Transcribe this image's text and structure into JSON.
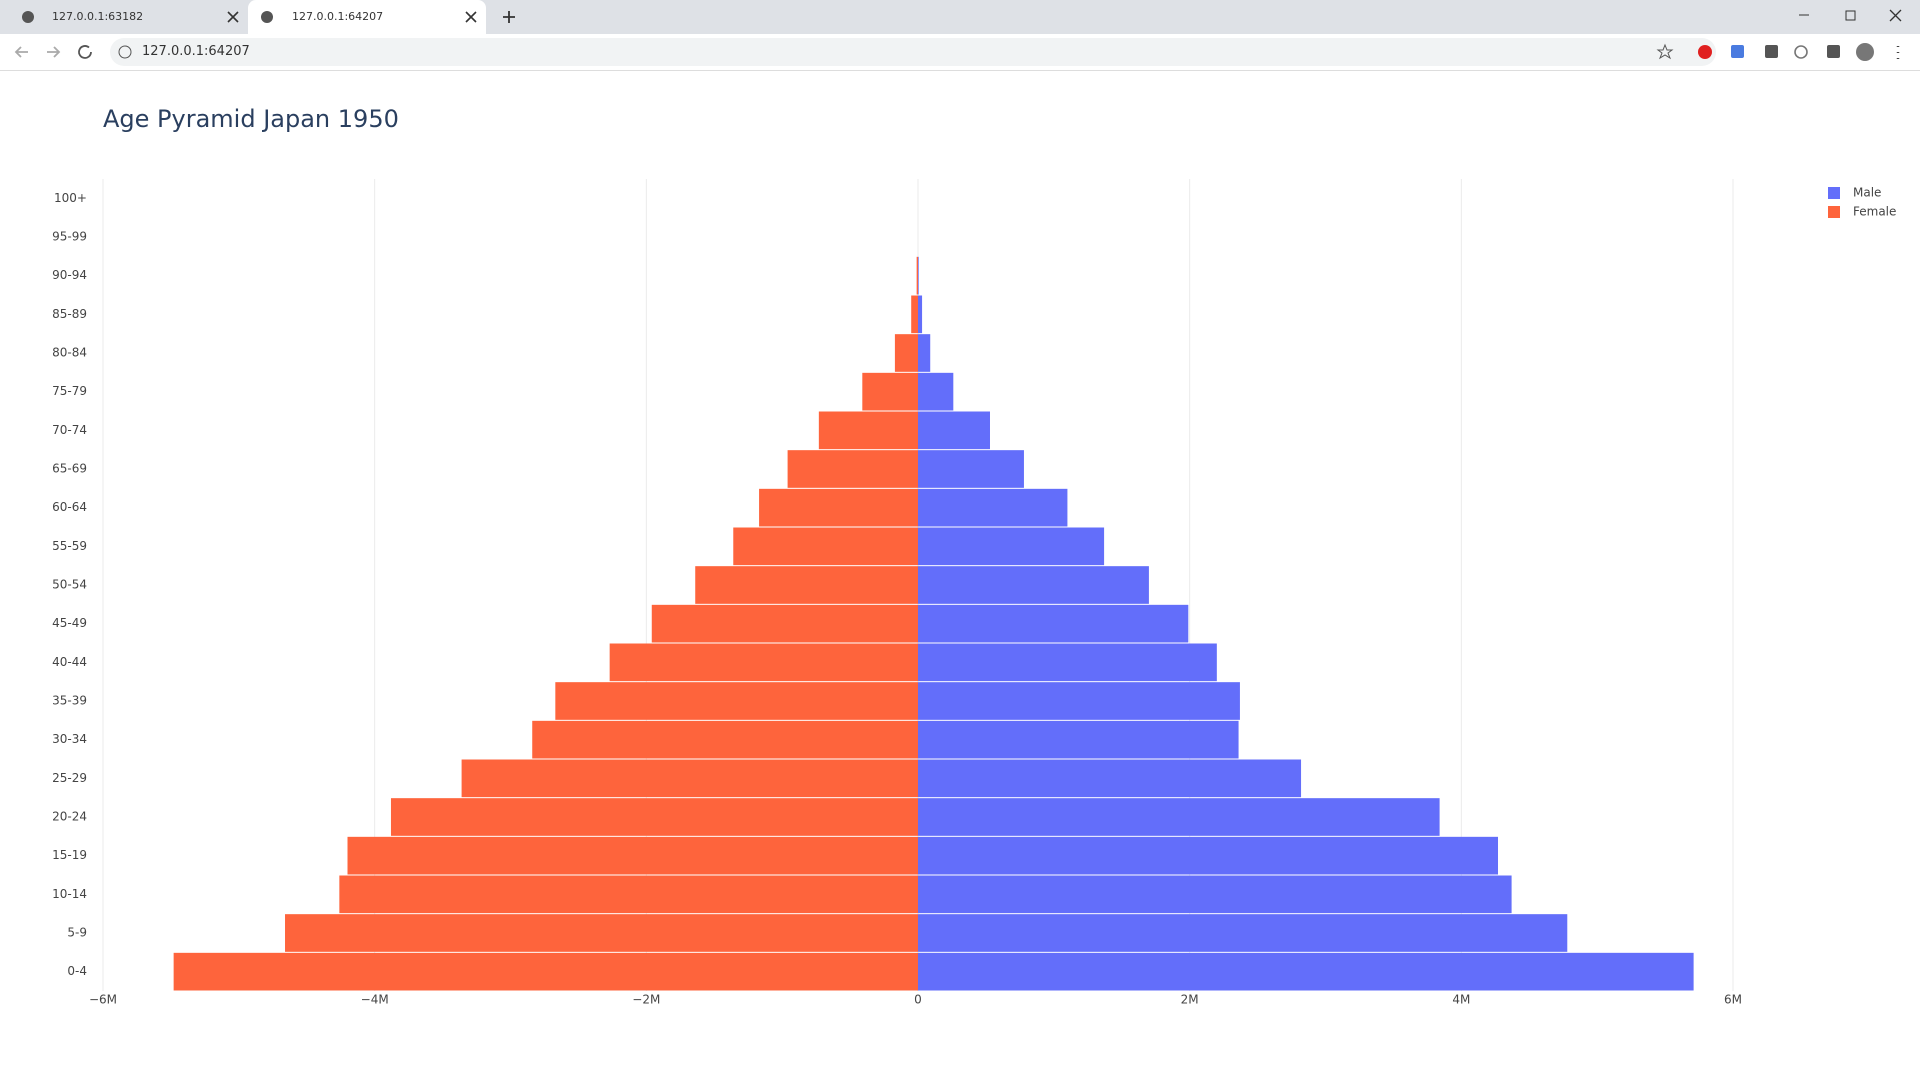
{
  "browser": {
    "tabs": [
      "127.0.0.1:63182",
      "127.0.0.1:64207"
    ],
    "url": "127.0.0.1:64207"
  },
  "chart_data": {
    "type": "bar",
    "orientation": "horizontal",
    "title": "Age Pyramid Japan 1950",
    "categories": [
      "0-4",
      "5-9",
      "10-14",
      "15-19",
      "20-24",
      "25-29",
      "30-34",
      "35-39",
      "40-44",
      "45-49",
      "50-54",
      "55-59",
      "60-64",
      "65-69",
      "70-74",
      "75-79",
      "80-84",
      "85-89",
      "90-94",
      "95-99",
      "100+"
    ],
    "series": [
      {
        "name": "Male",
        "color": "#636efa",
        "values": [
          5710000,
          4780000,
          4370000,
          4270000,
          3840000,
          2820000,
          2360000,
          2370000,
          2200000,
          1990000,
          1700000,
          1370000,
          1100000,
          780000,
          530000,
          260000,
          90000,
          30000,
          5000,
          0,
          0
        ]
      },
      {
        "name": "Female",
        "color": "#fe643c",
        "values": [
          -5480000,
          -4660000,
          -4260000,
          -4200000,
          -3880000,
          -3360000,
          -2840000,
          -2670000,
          -2270000,
          -1960000,
          -1640000,
          -1360000,
          -1170000,
          -960000,
          -730000,
          -410000,
          -170000,
          -50000,
          -10000,
          0,
          0
        ]
      }
    ],
    "xlim": [
      -6000000,
      6000000
    ],
    "xticks": [
      {
        "value": -6000000,
        "label": "−6M"
      },
      {
        "value": -4000000,
        "label": "−4M"
      },
      {
        "value": -2000000,
        "label": "−2M"
      },
      0,
      {
        "value": 2000000,
        "label": "2M"
      },
      {
        "value": 4000000,
        "label": "4M"
      },
      {
        "value": 6000000,
        "label": "6M"
      }
    ],
    "grid": true,
    "legend": "top-right"
  }
}
